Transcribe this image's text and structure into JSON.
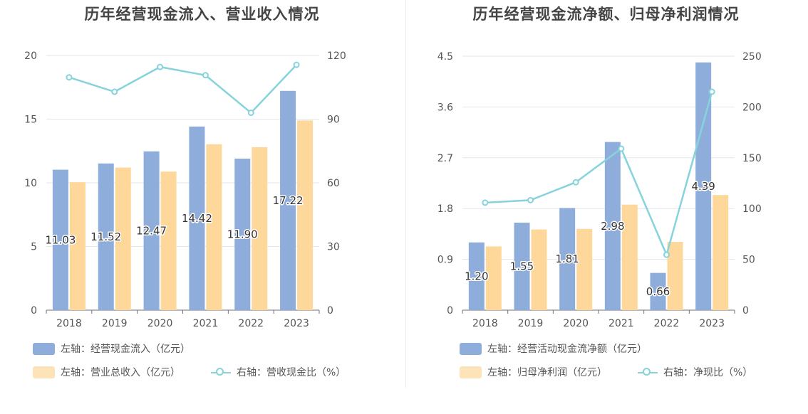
{
  "charts": [
    {
      "title": "历年经营现金流入、营业收入情况",
      "legend": [
        {
          "label": "左轴：经营现金流入（亿元）",
          "kind": "bar",
          "color": "#8eaddb"
        },
        {
          "label": "左轴：营业总收入（亿元）",
          "kind": "bar",
          "color": "#fde3b8"
        },
        {
          "label": "右轴：营收现金比（%）",
          "kind": "line",
          "color": "#87d3dc"
        }
      ]
    },
    {
      "title": "历年经营现金流净额、归母净利润情况",
      "legend": [
        {
          "label": "左轴：经营活动现金流净额（亿元）",
          "kind": "bar",
          "color": "#8eaddb"
        },
        {
          "label": "左轴：归母净利润（亿元）",
          "kind": "bar",
          "color": "#fde3b8"
        },
        {
          "label": "右轴：净现比（%）",
          "kind": "line",
          "color": "#87d3dc"
        }
      ]
    }
  ],
  "chart_data": [
    {
      "type": "bar",
      "title": "历年经营现金流入、营业收入情况",
      "categories": [
        "2018",
        "2019",
        "2020",
        "2021",
        "2022",
        "2023"
      ],
      "y_left": {
        "min": 0,
        "max": 20,
        "ticks": [
          "0",
          "5",
          "10",
          "15",
          "20"
        ]
      },
      "y_right": {
        "min": 0,
        "max": 120,
        "ticks": [
          "0",
          "30",
          "60",
          "90",
          "120"
        ]
      },
      "grid": true,
      "legend_position": "bottom",
      "series": [
        {
          "name": "左轴：经营现金流入（亿元）",
          "type": "bar",
          "axis": "left",
          "color": "#8eaddb",
          "values": [
            11.03,
            11.52,
            12.47,
            14.42,
            11.9,
            17.22
          ],
          "labels": [
            "11.03",
            "11.52",
            "12.47",
            "14.42",
            "11.90",
            "17.22"
          ]
        },
        {
          "name": "左轴：营业总收入（亿元）",
          "type": "bar",
          "axis": "left",
          "color": "#fed89b",
          "values": [
            10.05,
            11.2,
            10.88,
            13.03,
            12.8,
            14.9
          ]
        },
        {
          "name": "右轴：营收现金比（%）",
          "type": "line",
          "axis": "right",
          "color": "#87d3dc",
          "values": [
            109.7,
            102.9,
            114.6,
            110.7,
            93.0,
            115.6
          ]
        }
      ]
    },
    {
      "type": "bar",
      "title": "历年经营现金流净额、归母净利润情况",
      "categories": [
        "2018",
        "2019",
        "2020",
        "2021",
        "2022",
        "2023"
      ],
      "y_left": {
        "min": 0,
        "max": 4.5,
        "ticks": [
          "0",
          "0.9",
          "1.8",
          "2.7",
          "3.6",
          "4.5"
        ]
      },
      "y_right": {
        "min": 0,
        "max": 250,
        "ticks": [
          "0",
          "50",
          "100",
          "150",
          "200",
          "250"
        ]
      },
      "grid": true,
      "legend_position": "bottom",
      "series": [
        {
          "name": "左轴：经营活动现金流净额（亿元）",
          "type": "bar",
          "axis": "left",
          "color": "#8eaddb",
          "values": [
            1.2,
            1.55,
            1.81,
            2.98,
            0.66,
            4.39
          ],
          "labels": [
            "1.20",
            "1.55",
            "1.81",
            "2.98",
            "0.66",
            "4.39"
          ]
        },
        {
          "name": "左轴：归母净利润（亿元）",
          "type": "bar",
          "axis": "left",
          "color": "#fed89b",
          "values": [
            1.13,
            1.43,
            1.44,
            1.87,
            1.21,
            2.04
          ]
        },
        {
          "name": "右轴：净现比（%）",
          "type": "line",
          "axis": "right",
          "color": "#87d3dc",
          "values": [
            105.8,
            108.3,
            125.9,
            159.0,
            54.5,
            215.0
          ]
        }
      ]
    }
  ]
}
